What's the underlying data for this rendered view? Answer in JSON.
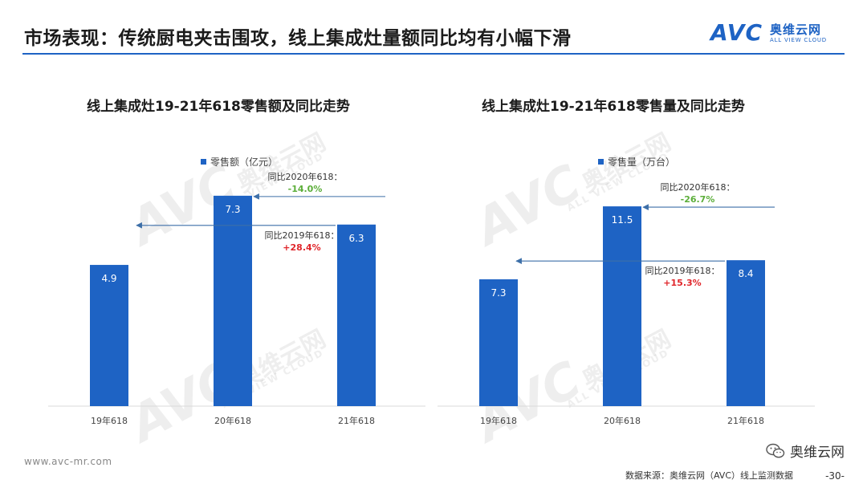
{
  "header": {
    "title": "市场表现：传统厨电夹击围攻，线上集成灶量额同比均有小幅下滑",
    "logo_avc": "AVC",
    "logo_cn": "奥维云网",
    "logo_en": "ALL VIEW CLOUD"
  },
  "colors": {
    "accent": "#1e63c4",
    "bar": "#1e63c4",
    "positive": "#e0262b",
    "negative": "#5cae3a"
  },
  "chart_data": [
    {
      "type": "bar",
      "title": "线上集成灶19-21年618零售额及同比走势",
      "categories": [
        "19年618",
        "20年618",
        "21年618"
      ],
      "series": [
        {
          "name": "零售额（亿元）",
          "values": [
            4.9,
            7.3,
            6.3
          ]
        }
      ],
      "value_labels": [
        "4.9",
        "7.3",
        "6.3"
      ],
      "ylim": [
        0,
        8.8
      ],
      "legend": "top-left",
      "annotations": [
        {
          "label": "同比2020年618：",
          "value": "-14.0%"
        },
        {
          "label": "同比2019年618：",
          "value": "+28.4%"
        }
      ]
    },
    {
      "type": "bar",
      "title": "线上集成灶19-21年618零售量及同比走势",
      "categories": [
        "19年618",
        "20年618",
        "21年618"
      ],
      "series": [
        {
          "name": "零售量（万台）",
          "values": [
            7.3,
            11.5,
            8.4
          ]
        }
      ],
      "value_labels": [
        "7.3",
        "11.5",
        "8.4"
      ],
      "ylim": [
        0,
        14.6
      ],
      "legend": "top-left",
      "annotations": [
        {
          "label": "同比2020年618：",
          "value": "-26.7%"
        },
        {
          "label": "同比2019年618：",
          "value": "+15.3%"
        }
      ]
    }
  ],
  "watermark": {
    "big": "AVC",
    "cn": "奥维云网",
    "en": "ALL VIEW CLOUD"
  },
  "footer": {
    "url": "www.avc-mr.com",
    "source": "数据来源：奥维云网（AVC）线上监测数据",
    "page": "-30-",
    "wechat": "奥维云网"
  }
}
